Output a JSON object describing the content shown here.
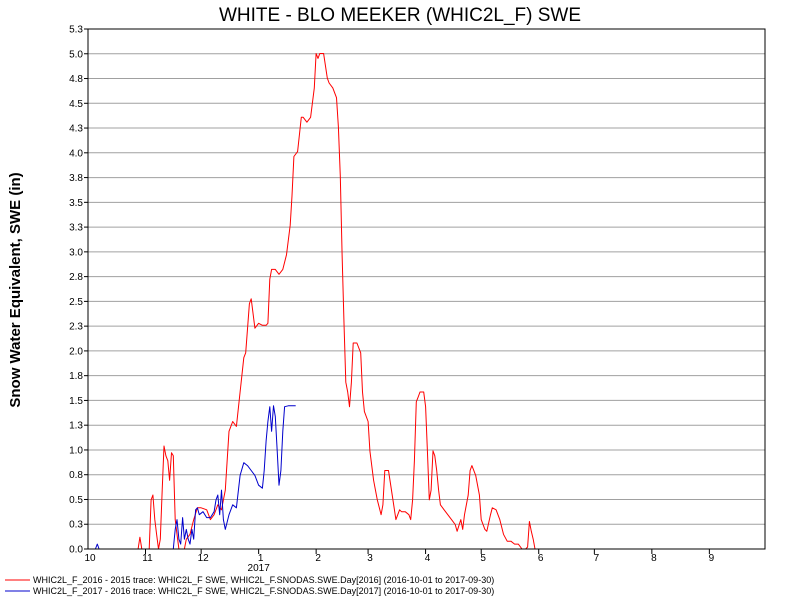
{
  "chart_data": {
    "type": "line",
    "title": "WHITE - BLO MEEKER (WHIC2L_F) SWE",
    "ylabel": "Snow Water Equivalent, SWE (in)",
    "xlabel": "",
    "ylim": [
      0,
      5.3
    ],
    "y_ticks": [
      "0.0",
      "0.3",
      "0.5",
      "0.8",
      "1.0",
      "1.3",
      "1.5",
      "1.8",
      "2.0",
      "2.3",
      "2.5",
      "2.8",
      "3.0",
      "3.3",
      "3.5",
      "3.8",
      "4.0",
      "4.3",
      "4.5",
      "4.8",
      "5.0",
      "5.3"
    ],
    "x_range": [
      "2016-10-01",
      "2017-10-01"
    ],
    "x_ticks": [
      {
        "date": "2016-10-01",
        "label": "10"
      },
      {
        "date": "2016-11-01",
        "label": "11"
      },
      {
        "date": "2016-12-01",
        "label": "12"
      },
      {
        "date": "2017-01-01",
        "label": "1"
      },
      {
        "date": "2017-02-01",
        "label": "2"
      },
      {
        "date": "2017-03-01",
        "label": "3"
      },
      {
        "date": "2017-04-01",
        "label": "4"
      },
      {
        "date": "2017-05-01",
        "label": "5"
      },
      {
        "date": "2017-06-01",
        "label": "6"
      },
      {
        "date": "2017-07-01",
        "label": "7"
      },
      {
        "date": "2017-08-01",
        "label": "8"
      },
      {
        "date": "2017-09-01",
        "label": "9"
      }
    ],
    "year_label": {
      "date": "2017-01-01",
      "label": "2017"
    },
    "grid": true,
    "legend_position": "bottom",
    "series": [
      {
        "name": "WHIC2L_F_2016 - 2015 trace: WHIC2L_F SWE, WHIC2L_F.SNODAS.SWE.Day[2016] (2016-10-01 to 2017-09-30)",
        "color": "#ff0000",
        "points": [
          [
            "2016-10-01",
            0
          ],
          [
            "2016-10-28",
            0
          ],
          [
            "2016-10-29",
            0.12
          ],
          [
            "2016-10-30",
            0
          ],
          [
            "2016-11-03",
            0
          ],
          [
            "2016-11-04",
            0.5
          ],
          [
            "2016-11-05",
            0.55
          ],
          [
            "2016-11-06",
            0.3
          ],
          [
            "2016-11-07",
            0.15
          ],
          [
            "2016-11-08",
            0.0
          ],
          [
            "2016-11-09",
            0.1
          ],
          [
            "2016-11-10",
            0.6
          ],
          [
            "2016-11-11",
            1.05
          ],
          [
            "2016-11-12",
            0.95
          ],
          [
            "2016-11-13",
            0.9
          ],
          [
            "2016-11-14",
            0.7
          ],
          [
            "2016-11-15",
            0.98
          ],
          [
            "2016-11-16",
            0.95
          ],
          [
            "2016-11-17",
            0.3
          ],
          [
            "2016-11-18",
            0.15
          ],
          [
            "2016-11-19",
            0.0
          ],
          [
            "2016-11-22",
            0.0
          ],
          [
            "2016-11-23",
            0.1
          ],
          [
            "2016-11-25",
            0.15
          ],
          [
            "2016-11-27",
            0.3
          ],
          [
            "2016-11-29",
            0.42
          ],
          [
            "2016-12-01",
            0.42
          ],
          [
            "2016-12-04",
            0.4
          ],
          [
            "2016-12-06",
            0.3
          ],
          [
            "2016-12-08",
            0.35
          ],
          [
            "2016-12-10",
            0.45
          ],
          [
            "2016-12-12",
            0.4
          ],
          [
            "2016-12-14",
            0.6
          ],
          [
            "2016-12-16",
            1.2
          ],
          [
            "2016-12-18",
            1.3
          ],
          [
            "2016-12-20",
            1.25
          ],
          [
            "2016-12-22",
            1.6
          ],
          [
            "2016-12-24",
            1.95
          ],
          [
            "2016-12-25",
            2.0
          ],
          [
            "2016-12-27",
            2.5
          ],
          [
            "2016-12-28",
            2.55
          ],
          [
            "2016-12-30",
            2.25
          ],
          [
            "2017-01-01",
            2.3
          ],
          [
            "2017-01-03",
            2.28
          ],
          [
            "2017-01-05",
            2.28
          ],
          [
            "2017-01-06",
            2.3
          ],
          [
            "2017-01-07",
            2.75
          ],
          [
            "2017-01-08",
            2.85
          ],
          [
            "2017-01-10",
            2.85
          ],
          [
            "2017-01-12",
            2.8
          ],
          [
            "2017-01-14",
            2.85
          ],
          [
            "2017-01-16",
            3.0
          ],
          [
            "2017-01-18",
            3.3
          ],
          [
            "2017-01-19",
            3.6
          ],
          [
            "2017-01-20",
            4.0
          ],
          [
            "2017-01-22",
            4.05
          ],
          [
            "2017-01-24",
            4.4
          ],
          [
            "2017-01-25",
            4.4
          ],
          [
            "2017-01-27",
            4.35
          ],
          [
            "2017-01-29",
            4.4
          ],
          [
            "2017-01-31",
            4.7
          ],
          [
            "2017-02-01",
            5.05
          ],
          [
            "2017-02-02",
            5.0
          ],
          [
            "2017-02-03",
            5.05
          ],
          [
            "2017-02-05",
            5.05
          ],
          [
            "2017-02-07",
            4.8
          ],
          [
            "2017-02-08",
            4.75
          ],
          [
            "2017-02-10",
            4.7
          ],
          [
            "2017-02-12",
            4.6
          ],
          [
            "2017-02-13",
            4.3
          ],
          [
            "2017-02-14",
            3.8
          ],
          [
            "2017-02-15",
            3.0
          ],
          [
            "2017-02-16",
            2.3
          ],
          [
            "2017-02-17",
            1.7
          ],
          [
            "2017-02-18",
            1.6
          ],
          [
            "2017-02-19",
            1.45
          ],
          [
            "2017-02-20",
            1.7
          ],
          [
            "2017-02-21",
            2.1
          ],
          [
            "2017-02-23",
            2.1
          ],
          [
            "2017-02-25",
            2.0
          ],
          [
            "2017-02-26",
            1.6
          ],
          [
            "2017-02-27",
            1.4
          ],
          [
            "2017-03-01",
            1.3
          ],
          [
            "2017-03-02",
            1.0
          ],
          [
            "2017-03-04",
            0.7
          ],
          [
            "2017-03-06",
            0.5
          ],
          [
            "2017-03-08",
            0.35
          ],
          [
            "2017-03-09",
            0.45
          ],
          [
            "2017-03-10",
            0.8
          ],
          [
            "2017-03-12",
            0.8
          ],
          [
            "2017-03-14",
            0.55
          ],
          [
            "2017-03-16",
            0.3
          ],
          [
            "2017-03-18",
            0.4
          ],
          [
            "2017-03-19",
            0.38
          ],
          [
            "2017-03-21",
            0.38
          ],
          [
            "2017-03-23",
            0.35
          ],
          [
            "2017-03-24",
            0.3
          ],
          [
            "2017-03-25",
            0.5
          ],
          [
            "2017-03-26",
            0.9
          ],
          [
            "2017-03-27",
            1.5
          ],
          [
            "2017-03-28",
            1.55
          ],
          [
            "2017-03-29",
            1.6
          ],
          [
            "2017-03-31",
            1.6
          ],
          [
            "2017-04-01",
            1.45
          ],
          [
            "2017-04-02",
            1.0
          ],
          [
            "2017-04-03",
            0.5
          ],
          [
            "2017-04-04",
            0.6
          ],
          [
            "2017-04-05",
            1.0
          ],
          [
            "2017-04-06",
            0.95
          ],
          [
            "2017-04-07",
            0.8
          ],
          [
            "2017-04-08",
            0.6
          ],
          [
            "2017-04-09",
            0.45
          ],
          [
            "2017-04-11",
            0.4
          ],
          [
            "2017-04-13",
            0.35
          ],
          [
            "2017-04-15",
            0.3
          ],
          [
            "2017-04-17",
            0.25
          ],
          [
            "2017-04-18",
            0.18
          ],
          [
            "2017-04-20",
            0.3
          ],
          [
            "2017-04-21",
            0.2
          ],
          [
            "2017-04-22",
            0.35
          ],
          [
            "2017-04-24",
            0.55
          ],
          [
            "2017-04-25",
            0.8
          ],
          [
            "2017-04-26",
            0.85
          ],
          [
            "2017-04-28",
            0.75
          ],
          [
            "2017-04-30",
            0.55
          ],
          [
            "2017-05-01",
            0.3
          ],
          [
            "2017-05-03",
            0.2
          ],
          [
            "2017-05-04",
            0.18
          ],
          [
            "2017-05-06",
            0.35
          ],
          [
            "2017-05-07",
            0.42
          ],
          [
            "2017-05-09",
            0.4
          ],
          [
            "2017-05-11",
            0.3
          ],
          [
            "2017-05-13",
            0.15
          ],
          [
            "2017-05-15",
            0.08
          ],
          [
            "2017-05-17",
            0.08
          ],
          [
            "2017-05-19",
            0.05
          ],
          [
            "2017-05-21",
            0.05
          ],
          [
            "2017-05-23",
            0.0
          ],
          [
            "2017-05-25",
            0.0
          ],
          [
            "2017-05-26",
            0.02
          ],
          [
            "2017-05-27",
            0.28
          ],
          [
            "2017-05-28",
            0.18
          ],
          [
            "2017-05-29",
            0.1
          ],
          [
            "2017-05-30",
            0.0
          ],
          [
            "2017-09-30",
            0
          ]
        ]
      },
      {
        "name": "WHIC2L_F_2017 - 2016 trace: WHIC2L_F SWE, WHIC2L_F.SNODAS.SWE.Day[2017] (2016-10-01 to 2017-09-30)",
        "color": "#0000cc",
        "points": [
          [
            "2016-10-01",
            0
          ],
          [
            "2016-10-05",
            0
          ],
          [
            "2016-10-06",
            0.05
          ],
          [
            "2016-10-07",
            0.0
          ],
          [
            "2016-11-16",
            0.0
          ],
          [
            "2016-11-17",
            0.2
          ],
          [
            "2016-11-18",
            0.3
          ],
          [
            "2016-11-19",
            0.1
          ],
          [
            "2016-11-20",
            0.05
          ],
          [
            "2016-11-21",
            0.32
          ],
          [
            "2016-11-22",
            0.1
          ],
          [
            "2016-11-23",
            0.2
          ],
          [
            "2016-11-24",
            0.1
          ],
          [
            "2016-11-25",
            0.05
          ],
          [
            "2016-11-26",
            0.2
          ],
          [
            "2016-11-27",
            0.1
          ],
          [
            "2016-11-28",
            0.4
          ],
          [
            "2016-11-29",
            0.42
          ],
          [
            "2016-11-30",
            0.35
          ],
          [
            "2016-12-02",
            0.38
          ],
          [
            "2016-12-04",
            0.32
          ],
          [
            "2016-12-06",
            0.32
          ],
          [
            "2016-12-08",
            0.38
          ],
          [
            "2016-12-09",
            0.5
          ],
          [
            "2016-12-10",
            0.55
          ],
          [
            "2016-12-11",
            0.35
          ],
          [
            "2016-12-12",
            0.6
          ],
          [
            "2016-12-13",
            0.3
          ],
          [
            "2016-12-14",
            0.2
          ],
          [
            "2016-12-16",
            0.35
          ],
          [
            "2016-12-18",
            0.45
          ],
          [
            "2016-12-20",
            0.42
          ],
          [
            "2016-12-22",
            0.75
          ],
          [
            "2016-12-24",
            0.88
          ],
          [
            "2016-12-26",
            0.85
          ],
          [
            "2016-12-28",
            0.8
          ],
          [
            "2016-12-30",
            0.75
          ],
          [
            "2017-01-01",
            0.65
          ],
          [
            "2017-01-03",
            0.62
          ],
          [
            "2017-01-04",
            0.8
          ],
          [
            "2017-01-05",
            1.1
          ],
          [
            "2017-01-06",
            1.3
          ],
          [
            "2017-01-07",
            1.45
          ],
          [
            "2017-01-08",
            1.2
          ],
          [
            "2017-01-09",
            1.46
          ],
          [
            "2017-01-10",
            1.35
          ],
          [
            "2017-01-11",
            1.0
          ],
          [
            "2017-01-12",
            0.65
          ],
          [
            "2017-01-13",
            0.8
          ],
          [
            "2017-01-14",
            1.2
          ],
          [
            "2017-01-15",
            1.45
          ],
          [
            "2017-01-17",
            1.46
          ],
          [
            "2017-01-19",
            1.46
          ],
          [
            "2017-01-21",
            1.46
          ]
        ]
      }
    ]
  }
}
